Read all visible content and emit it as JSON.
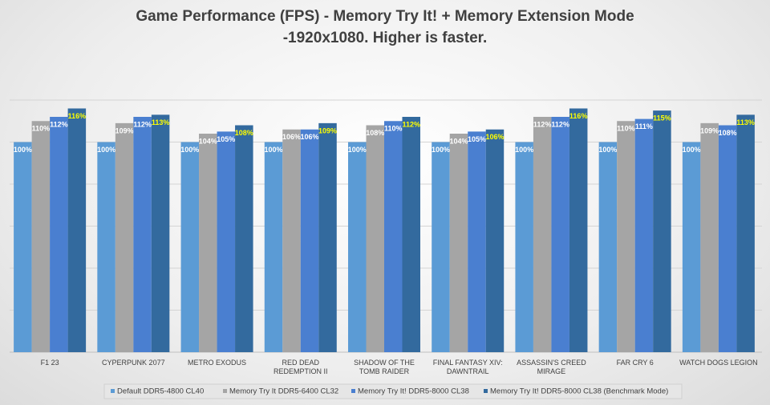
{
  "chart_data": {
    "type": "bar",
    "title": "Game Performance (FPS) - Memory Try It! + Memory Extension Mode",
    "subtitle": "-1920x1080. Higher is faster.",
    "categories": [
      "F1 23",
      "CYPERPUNK 2077",
      "METRO EXODUS",
      "RED DEAD REDEMPTION II",
      "SHADOW OF THE TOMB RAIDER",
      "FINAL FANTASY XIV: DAWNTRAIL",
      "ASSASSIN'S CREED MIRAGE",
      "FAR CRY 6",
      "WATCH DOGS LEGION"
    ],
    "series": [
      {
        "name": "Default DDR5-4800 CL40",
        "color": "#5b9bd5",
        "label_color": "#ffffff",
        "values": [
          100,
          100,
          100,
          100,
          100,
          100,
          100,
          100,
          100
        ],
        "value_labels": [
          "100%",
          "100%",
          "100%",
          "100%",
          "100%",
          "100%",
          "100%",
          "100%",
          "100%"
        ]
      },
      {
        "name": "Memory Try It DDR5-6400 CL32",
        "color": "#a5a5a5",
        "label_color": "#ffffff",
        "values": [
          110,
          109,
          104,
          106,
          108,
          104,
          112,
          110,
          109
        ],
        "value_labels": [
          "110%",
          "109%",
          "104%",
          "106%",
          "108%",
          "104%",
          "112%",
          "110%",
          "109%"
        ]
      },
      {
        "name": "Memory Try It! DDR5-8000 CL38",
        "color": "#4a7fd0",
        "label_color": "#ffffff",
        "values": [
          112,
          112,
          105,
          106,
          110,
          105,
          112,
          111,
          108
        ],
        "value_labels": [
          "112%",
          "112%",
          "105%",
          "106%",
          "110%",
          "105%",
          "112%",
          "111%",
          "108%"
        ]
      },
      {
        "name": "Memory Try It! DDR5-8000 CL38 (Benchmark Mode)",
        "color": "#336a9e",
        "label_color": "#ffff00",
        "values": [
          116,
          113,
          108,
          109,
          112,
          106,
          116,
          115,
          113
        ],
        "value_labels": [
          "116%",
          "113%",
          "108%",
          "109%",
          "112%",
          "106%",
          "116%",
          "115%",
          "113%"
        ]
      }
    ],
    "ylim": [
      0,
      120
    ],
    "yticks": [
      0,
      20,
      40,
      60,
      80,
      100,
      120
    ],
    "grid": true,
    "legend": "bottom"
  }
}
